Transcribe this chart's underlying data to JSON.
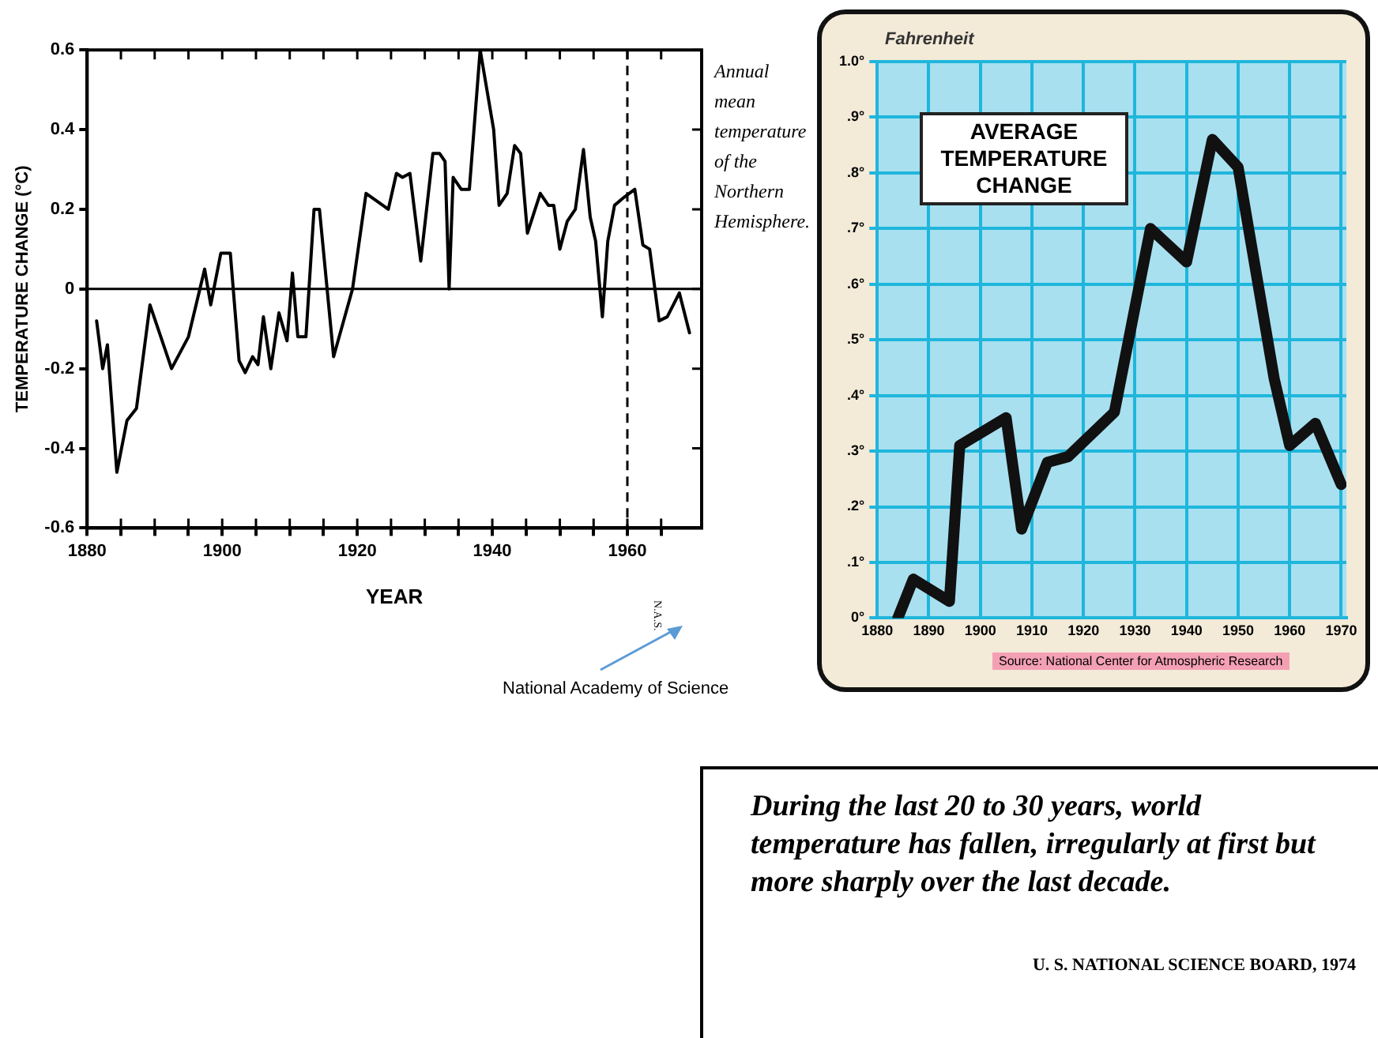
{
  "chart_data": [
    {
      "type": "line",
      "xlabel": "YEAR",
      "ylabel": "TEMPERATURE CHANGE (°C)",
      "color": "#000000",
      "marker": "none",
      "grid": false,
      "legend": false,
      "x": [
        1881.4,
        1882.3,
        1883,
        1884.4,
        1885.9,
        1887.3,
        1889.3,
        1892.5,
        1895,
        1897.4,
        1898.3,
        1899.8,
        1901.2,
        1902.5,
        1903.4,
        1904.5,
        1905.3,
        1906.1,
        1907.2,
        1908.4,
        1909.6,
        1910.4,
        1911.2,
        1912.4,
        1913.6,
        1914.4,
        1916.5,
        1919.3,
        1921.3,
        1924.6,
        1925.8,
        1926.7,
        1927.8,
        1929.4,
        1931.2,
        1932.2,
        1933,
        1933.6,
        1934.2,
        1935.4,
        1936.6,
        1938.2,
        1940.2,
        1941,
        1942.2,
        1943.3,
        1944.2,
        1945.2,
        1947.1,
        1948.3,
        1949.1,
        1950,
        1951.1,
        1952.3,
        1953.5,
        1954.5,
        1955.3,
        1956.3,
        1957.1,
        1958.1,
        1959.5,
        1961.1,
        1962.3,
        1963.3,
        1964.7,
        1965.9,
        1967.7,
        1969.2
      ],
      "values": [
        -0.08,
        -0.2,
        -0.14,
        -0.46,
        -0.33,
        -0.3,
        -0.04,
        -0.2,
        -0.12,
        0.05,
        -0.04,
        0.09,
        0.09,
        -0.18,
        -0.21,
        -0.17,
        -0.19,
        -0.07,
        -0.2,
        -0.06,
        -0.13,
        0.04,
        -0.12,
        -0.12,
        0.2,
        0.2,
        -0.17,
        0,
        0.24,
        0.2,
        0.29,
        0.28,
        0.29,
        0.07,
        0.34,
        0.34,
        0.32,
        0,
        0.28,
        0.25,
        0.25,
        0.6,
        0.4,
        0.21,
        0.24,
        0.36,
        0.34,
        0.14,
        0.24,
        0.21,
        0.21,
        0.1,
        0.17,
        0.2,
        0.35,
        0.18,
        0.12,
        -0.07,
        0.12,
        0.21,
        0.23,
        0.25,
        0.11,
        0.1,
        -0.08,
        -0.07,
        -0.01,
        -0.11
      ],
      "xlim": [
        1880,
        1971
      ],
      "xticks": [
        1880,
        {
          "value": 1885,
          "label": null
        },
        {
          "value": 1890,
          "label": null
        },
        {
          "value": 1895,
          "label": null
        },
        1900,
        {
          "value": 1905,
          "label": null
        },
        {
          "value": 1910,
          "label": null
        },
        {
          "value": 1915,
          "label": null
        },
        1920,
        {
          "value": 1925,
          "label": null
        },
        {
          "value": 1930,
          "label": null
        },
        {
          "value": 1935,
          "label": null
        },
        1940,
        {
          "value": 1945,
          "label": null
        },
        {
          "value": 1950,
          "label": null
        },
        {
          "value": 1955,
          "label": null
        },
        1960,
        {
          "value": 1965,
          "label": null
        }
      ],
      "ylim": [
        -0.6,
        0.6
      ],
      "yticks": [
        -0.6,
        -0.4,
        -0.2,
        0,
        0.2,
        0.4,
        0.6
      ],
      "ref_lines": [
        {
          "axis": "y",
          "value": 0,
          "color": "#000000",
          "line_style": "solid"
        },
        {
          "axis": "x",
          "value": 1960,
          "color": "#000000",
          "line_style": "dashed"
        }
      ],
      "annotations": [
        "Annual mean temperature of the Northern Hemisphere.",
        "N.A.S.",
        "National Academy of Science"
      ]
    },
    {
      "type": "line",
      "title": "AVERAGE TEMPERATURE CHANGE",
      "ylabel": "Fahrenheit",
      "color": "#111111",
      "marker": "none",
      "grid": true,
      "legend": false,
      "x": [
        1884,
        1887,
        1894,
        1896,
        1905,
        1908,
        1913,
        1917,
        1926,
        1933,
        1940,
        1945,
        1950,
        1957,
        1960,
        1965,
        1970
      ],
      "values": [
        0,
        0.07,
        0.03,
        0.31,
        0.36,
        0.16,
        0.28,
        0.29,
        0.37,
        0.7,
        0.64,
        0.86,
        0.81,
        0.43,
        0.31,
        0.35,
        0.24
      ],
      "xlim": [
        1880,
        1971
      ],
      "xticks": [
        1880,
        1890,
        1900,
        1910,
        1920,
        1930,
        1940,
        1950,
        1960,
        1970
      ],
      "ylim": [
        0,
        1
      ],
      "yticks": [
        {
          "value": 0,
          "label": "0°"
        },
        {
          "value": 0.1,
          "label": ".1°"
        },
        {
          "value": 0.2,
          "label": ".2°"
        },
        {
          "value": 0.3,
          "label": ".3°"
        },
        {
          "value": 0.4,
          "label": ".4°"
        },
        {
          "value": 0.5,
          "label": ".5°"
        },
        {
          "value": 0.6,
          "label": ".6°"
        },
        {
          "value": 0.7,
          "label": ".7°"
        },
        {
          "value": 0.8,
          "label": ".8°"
        },
        {
          "value": 0.9,
          "label": ".9°"
        },
        {
          "value": 1,
          "label": "1.0°"
        }
      ],
      "annotations": [
        "Source: National Center for Atmospheric Research"
      ]
    },
    {
      "type": "other",
      "annotations": [
        "During the last 20 to 30 years, world temperature has fallen, irregularly at first but more sharply over the last decade.",
        "U. S. NATIONAL SCIENCE BOARD, 1974"
      ]
    }
  ]
}
